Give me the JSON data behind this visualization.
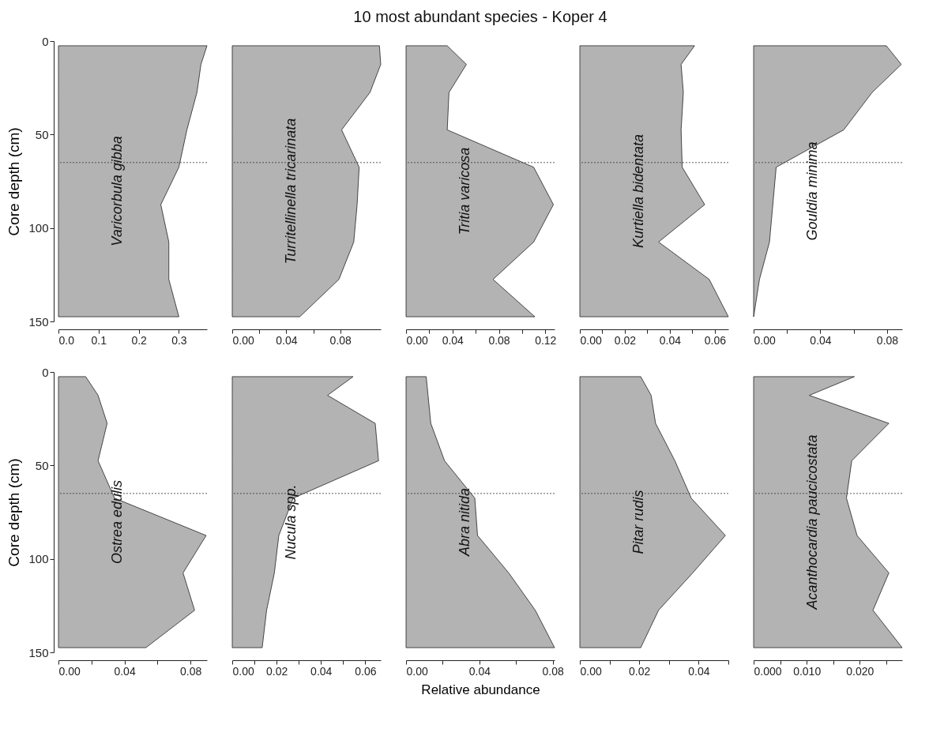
{
  "chart_data": [
    {
      "type": "area",
      "orientation": "horizontal",
      "ylabel": "Core depth (cm)",
      "annotations": [
        "Varicorbula gibba"
      ],
      "x": [
        2.5,
        12.5,
        27.5,
        47.5,
        67.5,
        87.5,
        107.5,
        127.5,
        147.5
      ],
      "values": [
        0.37,
        0.355,
        0.345,
        0.32,
        0.3,
        0.255,
        0.275,
        0.275,
        0.3
      ],
      "color": "#b3b3b3",
      "xlim": [
        0,
        0.37
      ],
      "xticks": [
        {
          "value": 0,
          "label": "0.0"
        },
        0.1,
        0.2,
        0.3
      ],
      "ylim": [
        150,
        0
      ],
      "yticks": [
        0,
        50,
        100,
        150
      ],
      "ref_lines": [
        {
          "axis": "y",
          "value": 65,
          "line_style": "dotted"
        }
      ]
    },
    {
      "type": "area",
      "orientation": "horizontal",
      "annotations": [
        "Turritellinella tricarinata"
      ],
      "x": [
        2.5,
        12.5,
        27.5,
        47.5,
        67.5,
        87.5,
        107.5,
        127.5,
        147.5
      ],
      "values": [
        0.109,
        0.11,
        0.102,
        0.081,
        0.094,
        0.0925,
        0.09,
        0.079,
        0.05
      ],
      "color": "#b3b3b3",
      "xlim": [
        0,
        0.11
      ],
      "xticks": [
        {
          "value": 0,
          "label": "0.00"
        },
        {
          "value": 0.02,
          "label": null
        },
        0.04,
        {
          "value": 0.06,
          "label": null
        },
        0.08
      ],
      "ylim": [
        150,
        0
      ],
      "tick_labels": "x",
      "ref_lines": [
        {
          "axis": "y",
          "value": 65,
          "line_style": "dotted"
        }
      ]
    },
    {
      "type": "area",
      "orientation": "horizontal",
      "title": "10 most abundant species - Koper 4",
      "annotations": [
        "Tritia varicosa"
      ],
      "x": [
        2.5,
        12.5,
        27.5,
        47.5,
        67.5,
        87.5,
        107.5,
        127.5,
        147.5
      ],
      "values": [
        0.0355,
        0.052,
        0.037,
        0.0355,
        0.11,
        0.127,
        0.11,
        0.075,
        0.111
      ],
      "color": "#b3b3b3",
      "xlim": [
        0,
        0.128
      ],
      "xticks": [
        {
          "value": 0,
          "label": "0.00"
        },
        {
          "value": 0.02,
          "label": null
        },
        0.04,
        {
          "value": 0.06,
          "label": null
        },
        0.08,
        {
          "value": 0.1,
          "label": null
        },
        0.12
      ],
      "ylim": [
        150,
        0
      ],
      "tick_labels": "x",
      "ref_lines": [
        {
          "axis": "y",
          "value": 65,
          "line_style": "dotted"
        }
      ]
    },
    {
      "type": "area",
      "orientation": "horizontal",
      "annotations": [
        "Kurtiella bidentata"
      ],
      "x": [
        2.5,
        12.5,
        27.5,
        47.5,
        67.5,
        87.5,
        107.5,
        127.5,
        147.5
      ],
      "values": [
        0.051,
        0.045,
        0.046,
        0.045,
        0.0455,
        0.0555,
        0.035,
        0.0575,
        0.066
      ],
      "color": "#b3b3b3",
      "xlim": [
        0,
        0.066
      ],
      "xticks": [
        {
          "value": 0,
          "label": "0.00"
        },
        {
          "value": 0.01,
          "label": null
        },
        0.02,
        {
          "value": 0.03,
          "label": null
        },
        0.04,
        {
          "value": 0.05,
          "label": null
        },
        0.06
      ],
      "ylim": [
        150,
        0
      ],
      "tick_labels": "x",
      "ref_lines": [
        {
          "axis": "y",
          "value": 65,
          "line_style": "dotted"
        }
      ]
    },
    {
      "type": "area",
      "orientation": "horizontal",
      "annotations": [
        "Gouldia minima"
      ],
      "x": [
        2.5,
        12.5,
        27.5,
        47.5,
        67.5,
        87.5,
        107.5,
        127.5,
        147.5
      ],
      "values": [
        0.0795,
        0.0885,
        0.071,
        0.054,
        0.0135,
        0.0115,
        0.0095,
        0.0035,
        0
      ],
      "color": "#b3b3b3",
      "xlim": [
        0,
        0.089
      ],
      "xticks": [
        {
          "value": 0,
          "label": "0.00"
        },
        {
          "value": 0.02,
          "label": null
        },
        0.04,
        {
          "value": 0.06,
          "label": null
        },
        0.08
      ],
      "ylim": [
        150,
        0
      ],
      "tick_labels": "x",
      "ref_lines": [
        {
          "axis": "y",
          "value": 65,
          "line_style": "dotted"
        }
      ]
    },
    {
      "type": "area",
      "orientation": "horizontal",
      "ylabel": "Core depth (cm)",
      "annotations": [
        "Ostrea edulis"
      ],
      "x": [
        2.5,
        12.5,
        27.5,
        47.5,
        67.5,
        87.5,
        107.5,
        127.5,
        147.5
      ],
      "values": [
        0.0165,
        0.024,
        0.0295,
        0.024,
        0.034,
        0.0895,
        0.0755,
        0.0825,
        0.053
      ],
      "color": "#b3b3b3",
      "xlim": [
        0,
        0.09
      ],
      "xticks": [
        {
          "value": 0,
          "label": "0.00"
        },
        {
          "value": 0.02,
          "label": null
        },
        0.04,
        {
          "value": 0.06,
          "label": null
        },
        0.08
      ],
      "ylim": [
        150,
        0
      ],
      "yticks": [
        0,
        50,
        100,
        150
      ],
      "ref_lines": [
        {
          "axis": "y",
          "value": 65,
          "line_style": "dotted"
        }
      ]
    },
    {
      "type": "area",
      "orientation": "horizontal",
      "annotations": [
        "Nucula spp."
      ],
      "x": [
        2.5,
        12.5,
        27.5,
        47.5,
        67.5,
        87.5,
        107.5,
        127.5,
        147.5
      ],
      "values": [
        0.0545,
        0.043,
        0.0645,
        0.066,
        0.0275,
        0.021,
        0.019,
        0.0155,
        0.0135
      ],
      "color": "#b3b3b3",
      "xlim": [
        0,
        0.067
      ],
      "xticks": [
        {
          "value": 0,
          "label": "0.00"
        },
        {
          "value": 0.01,
          "label": null
        },
        0.02,
        {
          "value": 0.03,
          "label": null
        },
        0.04,
        {
          "value": 0.05,
          "label": null
        },
        0.06
      ],
      "ylim": [
        150,
        0
      ],
      "tick_labels": "x",
      "ref_lines": [
        {
          "axis": "y",
          "value": 65,
          "line_style": "dotted"
        }
      ]
    },
    {
      "type": "area",
      "orientation": "horizontal",
      "xlabel": "Relative abundance",
      "annotations": [
        "Abra nitida"
      ],
      "x": [
        2.5,
        12.5,
        27.5,
        47.5,
        67.5,
        87.5,
        107.5,
        127.5,
        147.5
      ],
      "values": [
        0.011,
        0.012,
        0.0135,
        0.021,
        0.0375,
        0.039,
        0.056,
        0.0705,
        0.081
      ],
      "color": "#b3b3b3",
      "xlim": [
        0,
        0.081
      ],
      "xticks": [
        {
          "value": 0,
          "label": "0.00"
        },
        {
          "value": 0.02,
          "label": null
        },
        0.04,
        {
          "value": 0.06,
          "label": null
        },
        0.08
      ],
      "ylim": [
        150,
        0
      ],
      "tick_labels": "x",
      "ref_lines": [
        {
          "axis": "y",
          "value": 65,
          "line_style": "dotted"
        }
      ]
    },
    {
      "type": "area",
      "orientation": "horizontal",
      "annotations": [
        "Pitar rudis"
      ],
      "x": [
        2.5,
        12.5,
        27.5,
        47.5,
        67.5,
        87.5,
        107.5,
        127.5,
        147.5
      ],
      "values": [
        0.0205,
        0.024,
        0.0255,
        0.032,
        0.0375,
        0.049,
        0.038,
        0.0265,
        0.0205
      ],
      "color": "#b3b3b3",
      "xlim": [
        0,
        0.05
      ],
      "xticks": [
        {
          "value": 0,
          "label": "0.00"
        },
        {
          "value": 0.01,
          "label": null
        },
        0.02,
        {
          "value": 0.03,
          "label": null
        },
        0.04,
        {
          "value": 0.05,
          "label": null
        }
      ],
      "ylim": [
        150,
        0
      ],
      "tick_labels": "x",
      "ref_lines": [
        {
          "axis": "y",
          "value": 65,
          "line_style": "dotted"
        }
      ]
    },
    {
      "type": "area",
      "orientation": "horizontal",
      "annotations": [
        "Acanthocardia paucicostata"
      ],
      "x": [
        2.5,
        12.5,
        27.5,
        47.5,
        67.5,
        87.5,
        107.5,
        127.5,
        147.5
      ],
      "values": [
        0.019,
        0.0105,
        0.0255,
        0.0185,
        0.0175,
        0.0195,
        0.0255,
        0.0225,
        0.028
      ],
      "color": "#b3b3b3",
      "xlim": [
        0,
        0.028
      ],
      "xticks": [
        {
          "value": 0,
          "label": "0.000"
        },
        {
          "value": 0.005,
          "label": null
        },
        {
          "value": 0.01,
          "label": "0.010"
        },
        {
          "value": 0.015,
          "label": null
        },
        {
          "value": 0.02,
          "label": "0.020"
        },
        {
          "value": 0.025,
          "label": null
        }
      ],
      "ylim": [
        150,
        0
      ],
      "tick_labels": "x",
      "ref_lines": [
        {
          "axis": "y",
          "value": 65,
          "line_style": "dotted"
        }
      ]
    }
  ]
}
